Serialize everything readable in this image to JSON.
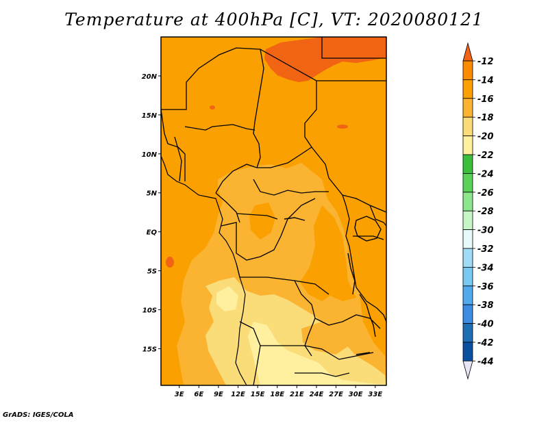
{
  "title": "Temperature at 400hPa [C], VT: 2020080121",
  "credit": "GrADS: IGES/COLA",
  "map": {
    "lat_ticks": [
      {
        "label": "20N",
        "lat": 20
      },
      {
        "label": "15N",
        "lat": 15
      },
      {
        "label": "10N",
        "lat": 10
      },
      {
        "label": "5N",
        "lat": 5
      },
      {
        "label": "EQ",
        "lat": 0
      },
      {
        "label": "5S",
        "lat": -5
      },
      {
        "label": "10S",
        "lat": -10
      },
      {
        "label": "15S",
        "lat": -15
      }
    ],
    "lon_ticks": [
      {
        "label": "3E",
        "lon": 3
      },
      {
        "label": "6E",
        "lon": 6
      },
      {
        "label": "9E",
        "lon": 9
      },
      {
        "label": "12E",
        "lon": 12
      },
      {
        "label": "15E",
        "lon": 15
      },
      {
        "label": "18E",
        "lon": 18
      },
      {
        "label": "21E",
        "lon": 21
      },
      {
        "label": "24E",
        "lon": 24
      },
      {
        "label": "27E",
        "lon": 27
      },
      {
        "label": "30E",
        "lon": 30
      },
      {
        "label": "33E",
        "lon": 33
      }
    ],
    "lon_range": [
      0.2,
      34.7
    ],
    "lat_range": [
      -19.7,
      25
    ]
  },
  "colorbar": {
    "labels": [
      "-12",
      "-14",
      "-16",
      "-18",
      "-20",
      "-22",
      "-24",
      "-26",
      "-28",
      "-30",
      "-32",
      "-34",
      "-36",
      "-38",
      "-40",
      "-42",
      "-44"
    ],
    "colors": [
      "#f06414",
      "#fa8c00",
      "#faa000",
      "#fab432",
      "#fadc78",
      "#fff0a0",
      "#3cbe3c",
      "#5ad25a",
      "#8ce68c",
      "#c8f5c8",
      "#e6fafa",
      "#a0dcf5",
      "#78c8f0",
      "#50aaeb",
      "#3c8ce1",
      "#1e6eb4",
      "#0a50a0",
      "#00287d",
      "#e6e6f5"
    ]
  },
  "fields": [
    {
      "name": "-18 band",
      "color": "#fab432"
    },
    {
      "name": "-20 band",
      "color": "#fadc78"
    },
    {
      "name": "-22 band",
      "color": "#fff0a0"
    },
    {
      "name": "-12 band",
      "color": "#f06414"
    }
  ]
}
